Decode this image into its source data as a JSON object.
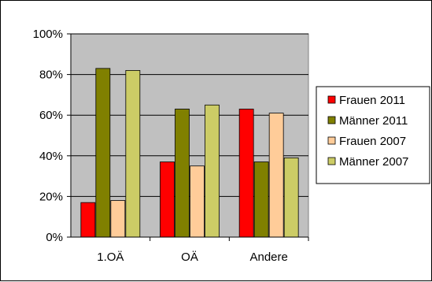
{
  "chart_data": {
    "type": "bar",
    "categories": [
      "1.OÄ",
      "OÄ",
      "Andere"
    ],
    "series": [
      {
        "name": "Frauen 2011",
        "values": [
          17,
          37,
          63
        ],
        "color": "#ff0000"
      },
      {
        "name": "Männer 2011",
        "values": [
          83,
          63,
          37
        ],
        "color": "#808000"
      },
      {
        "name": "Frauen 2007",
        "values": [
          18,
          35,
          61
        ],
        "color": "#ffcc99"
      },
      {
        "name": "Männer 2007",
        "values": [
          82,
          65,
          39
        ],
        "color": "#cccc66"
      }
    ],
    "ylim": [
      0,
      100
    ],
    "yticks": [
      "0%",
      "20%",
      "40%",
      "60%",
      "80%",
      "100%"
    ],
    "grid": true,
    "plot_background": "#c0c0c0",
    "legend": "right"
  }
}
